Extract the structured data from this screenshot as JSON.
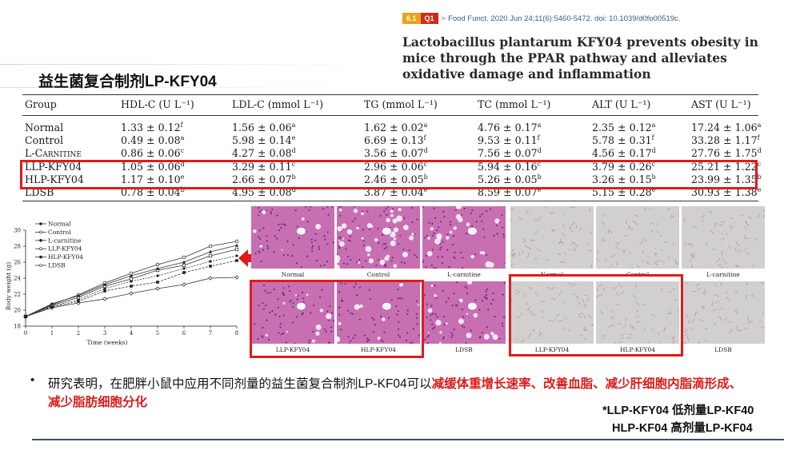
{
  "citation": {
    "badge_if": "6.1",
    "badge_q": "Q1",
    "arrow": ">",
    "text": "Food Funct. 2020 Jun 24;11(6):5460-5472. doi: 10.1039/d0fo00519c."
  },
  "paper_title": "Lactobacillus plantarum KFY04 prevents obesity in mice through the PPAR pathway and alleviates oxidative damage and inflammation",
  "slide_title": "益生菌复合制剂LP-KFY04",
  "table": {
    "headers": {
      "group": "Group",
      "hdl": "HDL-C (U L⁻¹)",
      "ldl": "LDL-C (mmol L⁻¹)",
      "tg": "TG (mmol L⁻¹)",
      "tc": "TC (mmol L⁻¹)",
      "alt": "ALT (U L⁻¹)",
      "ast": "AST (U L⁻¹)"
    },
    "rows": [
      {
        "group": "Normal",
        "hdl": "1.33 ± 0.12",
        "hdl_s": "f",
        "ldl": "1.56 ± 0.06",
        "ldl_s": "a",
        "tg": "1.62 ± 0.02",
        "tg_s": "a",
        "tc": "4.76 ± 0.17",
        "tc_s": "a",
        "alt": "2.35 ± 0.12",
        "alt_s": "a",
        "ast": "17.24 ± 1.06",
        "ast_s": "a"
      },
      {
        "group": "Control",
        "hdl": "0.49 ± 0.08",
        "hdl_s": "a",
        "ldl": "5.98 ± 0.14",
        "ldl_s": "e",
        "tg": "6.69 ± 0.13",
        "tg_s": "f",
        "tc": "9.53 ± 0.11",
        "tc_s": "f",
        "alt": "5.78 ± 0.31",
        "alt_s": "f",
        "ast": "33.28 ± 1.17",
        "ast_s": "f"
      },
      {
        "group": "L-Carnitine",
        "hdl": "0.86 ± 0.06",
        "hdl_s": "c",
        "ldl": "4.27 ± 0.08",
        "ldl_s": "d",
        "tg": "3.56 ± 0.07",
        "tg_s": "d",
        "tc": "7.56 ± 0.07",
        "tc_s": "d",
        "alt": "4.56 ± 0.17",
        "alt_s": "d",
        "ast": "27.76 ± 1.75",
        "ast_s": "d"
      },
      {
        "group": "LLP-KFY04",
        "hdl": "1.05 ± 0.06",
        "hdl_s": "d",
        "ldl": "3.29 ± 0.11",
        "ldl_s": "c",
        "tg": "2.96 ± 0.06",
        "tg_s": "c",
        "tc": "5.94 ± 0.16",
        "tc_s": "c",
        "alt": "3.79 ± 0.26",
        "alt_s": "c",
        "ast": "25.21 ± 1.22",
        "ast_s": "c"
      },
      {
        "group": "HLP-KFY04",
        "hdl": "1.17 ± 0.10",
        "hdl_s": "e",
        "ldl": "2.66 ± 0.07",
        "ldl_s": "b",
        "tg": "2.46 ± 0.05",
        "tg_s": "b",
        "tc": "5.26 ± 0.05",
        "tc_s": "b",
        "alt": "3.26 ± 0.15",
        "alt_s": "b",
        "ast": "23.99 ± 1.35",
        "ast_s": "b"
      },
      {
        "group": "LDSB",
        "hdl": "0.78 ± 0.04",
        "hdl_s": "b",
        "ldl": "4.95 ± 0.08",
        "ldl_s": "d",
        "tg": "3.87 ± 0.04",
        "tg_s": "e",
        "tc": "8.59 ± 0.07",
        "tc_s": "e",
        "alt": "5.15 ± 0.28",
        "alt_s": "e",
        "ast": "30.93 ± 1.38",
        "ast_s": "e"
      }
    ]
  },
  "chart_data": {
    "type": "line",
    "title": "",
    "xlabel": "Time (weeks)",
    "ylabel": "Body weight (g)",
    "x": [
      0,
      1,
      2,
      3,
      4,
      5,
      6,
      7,
      8
    ],
    "xlim": [
      0,
      8
    ],
    "ylim": [
      18,
      30
    ],
    "yticks": [
      18,
      20,
      22,
      24,
      26,
      28,
      30
    ],
    "legend_position": "top-left",
    "series": [
      {
        "name": "Normal",
        "values": [
          19.2,
          20.3,
          20.9,
          21.4,
          22.1,
          22.7,
          23.2,
          24.0,
          24.1
        ]
      },
      {
        "name": "Control",
        "values": [
          19.2,
          20.7,
          21.9,
          23.4,
          24.6,
          25.7,
          26.6,
          28.0,
          28.6
        ]
      },
      {
        "name": "L-carnitine",
        "values": [
          19.2,
          20.5,
          21.3,
          22.7,
          23.6,
          24.3,
          25.2,
          26.1,
          26.8
        ]
      },
      {
        "name": "LLP-KFY04",
        "values": [
          19.2,
          20.6,
          21.6,
          23.0,
          23.9,
          25.0,
          25.6,
          26.8,
          27.6
        ]
      },
      {
        "name": "HLP-KFY04",
        "values": [
          19.2,
          20.4,
          21.1,
          22.4,
          23.0,
          23.5,
          24.7,
          25.5,
          26.2
        ]
      },
      {
        "name": "LDSB",
        "values": [
          19.2,
          20.8,
          21.8,
          23.2,
          24.3,
          25.2,
          26.0,
          27.3,
          28.1
        ]
      }
    ]
  },
  "liver_panels": [
    "Normal",
    "Control",
    "L-carnitine",
    "LLP-KFY04",
    "HLP-KFY04",
    "LDSB"
  ],
  "adipose_panels": [
    "Normal",
    "Control",
    "L-carnitine",
    "LLP-KFY04",
    "HLP-KFY04",
    "LDSB"
  ],
  "colors": {
    "highlight": "#e01b1b",
    "liver": "#c86fb1",
    "adipose": "#d2cfcf"
  },
  "research": {
    "bullet": "•",
    "normal": "研究表明，在肥胖小鼠中应用不同剂量的益生菌复合制剂LP-KF04可以",
    "highlight": "减缓体重增长速率、改善血脂、减少肝细胞内脂滴形成、减少脂肪细胞分化"
  },
  "notes": {
    "line1": "*LLP-KFY04 低剂量LP-KF40",
    "line2": "HLP-KF04 高剂量LP-KF04"
  }
}
